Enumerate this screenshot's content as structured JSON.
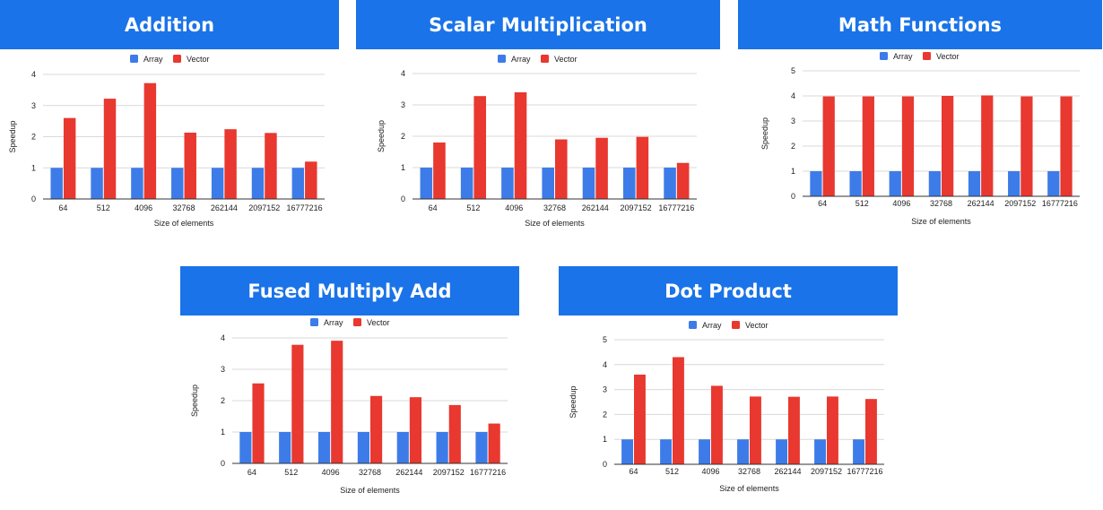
{
  "colors": {
    "banner": "#1a73e8",
    "array": "#3d7ce8",
    "vector": "#e8382f",
    "grid": "#d9d9d9",
    "axis": "#333333"
  },
  "chart_data": [
    {
      "type": "bar",
      "title": "Addition",
      "categories": [
        "64",
        "512",
        "4096",
        "32768",
        "262144",
        "2097152",
        "16777216"
      ],
      "series": [
        {
          "name": "Array",
          "values": [
            1,
            1,
            1,
            1,
            1,
            1,
            1
          ]
        },
        {
          "name": "Vector",
          "values": [
            2.6,
            3.22,
            3.72,
            2.13,
            2.24,
            2.12,
            1.2
          ]
        }
      ],
      "xlabel": "Size of elements",
      "ylabel": "Speedup",
      "ylim": [
        0,
        4
      ],
      "yticks": [
        "0",
        "1",
        "2",
        "3",
        "4"
      ],
      "grid": true,
      "legend": "top-center"
    },
    {
      "type": "bar",
      "title": "Scalar Multiplication",
      "categories": [
        "64",
        "512",
        "4096",
        "32768",
        "262144",
        "2097152",
        "16777216"
      ],
      "series": [
        {
          "name": "Array",
          "values": [
            1,
            1,
            1,
            1,
            1,
            1,
            1
          ]
        },
        {
          "name": "Vector",
          "values": [
            1.8,
            3.28,
            3.4,
            1.9,
            1.95,
            1.98,
            1.15
          ]
        }
      ],
      "xlabel": "Size of elements",
      "ylabel": "Speedup",
      "ylim": [
        0,
        4
      ],
      "yticks": [
        "0",
        "1",
        "2",
        "3",
        "4"
      ],
      "grid": true,
      "legend": "top-center"
    },
    {
      "type": "bar",
      "title": "Math Functions",
      "categories": [
        "64",
        "512",
        "4096",
        "32768",
        "262144",
        "2097152",
        "16777216"
      ],
      "series": [
        {
          "name": "Array",
          "values": [
            1,
            1,
            1,
            1,
            1,
            1,
            1
          ]
        },
        {
          "name": "Vector",
          "values": [
            3.98,
            3.98,
            3.98,
            4.0,
            4.02,
            3.98,
            3.98
          ]
        }
      ],
      "xlabel": "Size of elements",
      "ylabel": "Speedup",
      "ylim": [
        0,
        5
      ],
      "yticks": [
        "0",
        "1",
        "2",
        "3",
        "4",
        "5"
      ],
      "grid": true,
      "legend": "top-center"
    },
    {
      "type": "bar",
      "title": "Fused Multiply Add",
      "categories": [
        "64",
        "512",
        "4096",
        "32768",
        "262144",
        "2097152",
        "16777216"
      ],
      "series": [
        {
          "name": "Array",
          "values": [
            1,
            1,
            1,
            1,
            1,
            1,
            1
          ]
        },
        {
          "name": "Vector",
          "values": [
            2.55,
            3.78,
            3.91,
            2.15,
            2.11,
            1.86,
            1.27
          ]
        }
      ],
      "xlabel": "Size of elements",
      "ylabel": "Speedup",
      "ylim": [
        0,
        4
      ],
      "yticks": [
        "0",
        "1",
        "2",
        "3",
        "4"
      ],
      "grid": true,
      "legend": "top-center"
    },
    {
      "type": "bar",
      "title": "Dot Product",
      "categories": [
        "64",
        "512",
        "4096",
        "32768",
        "262144",
        "2097152",
        "16777216"
      ],
      "series": [
        {
          "name": "Array",
          "values": [
            1,
            1,
            1,
            1,
            1,
            1,
            1
          ]
        },
        {
          "name": "Vector",
          "values": [
            3.6,
            4.3,
            3.15,
            2.72,
            2.71,
            2.72,
            2.62
          ]
        }
      ],
      "xlabel": "Size of elements",
      "ylabel": "Speedup",
      "ylim": [
        0,
        5
      ],
      "yticks": [
        "0",
        "1",
        "2",
        "3",
        "4",
        "5"
      ],
      "grid": true,
      "legend": "top-center"
    }
  ]
}
